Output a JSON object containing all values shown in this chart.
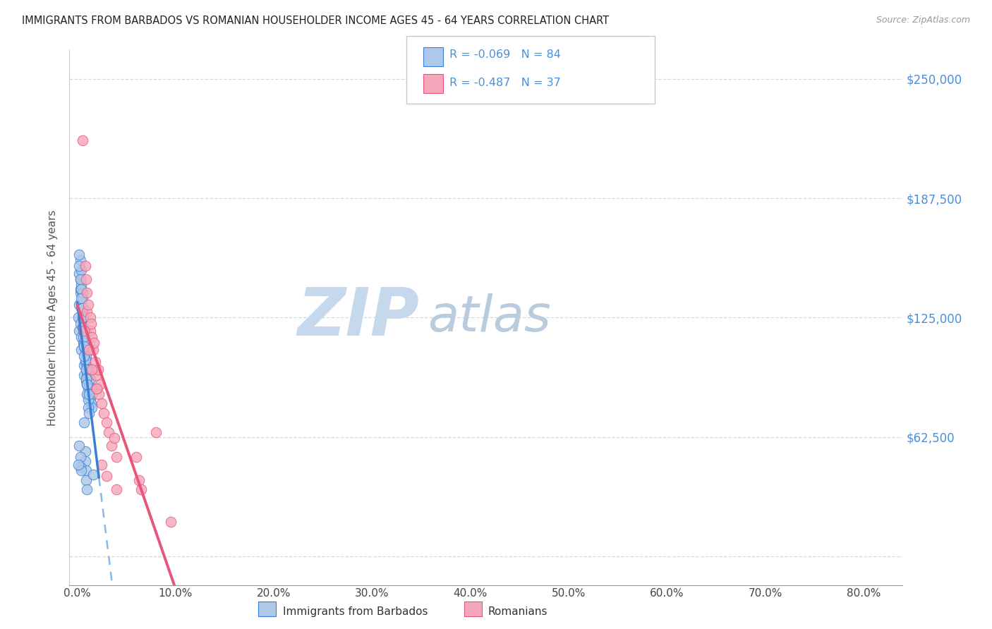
{
  "title": "IMMIGRANTS FROM BARBADOS VS ROMANIAN HOUSEHOLDER INCOME AGES 45 - 64 YEARS CORRELATION CHART",
  "source": "Source: ZipAtlas.com",
  "ylabel": "Householder Income Ages 45 - 64 years",
  "xlabel_ticks": [
    "0.0%",
    "10.0%",
    "20.0%",
    "30.0%",
    "40.0%",
    "50.0%",
    "60.0%",
    "70.0%",
    "80.0%"
  ],
  "xlabel_vals": [
    0.0,
    0.1,
    0.2,
    0.3,
    0.4,
    0.5,
    0.6,
    0.7,
    0.8
  ],
  "ytick_labels": [
    "$62,500",
    "$125,000",
    "$187,500",
    "$250,000"
  ],
  "ytick_vals": [
    62500,
    125000,
    187500,
    250000
  ],
  "grid_lines": [
    0,
    62500,
    125000,
    187500,
    250000
  ],
  "xlim": [
    -0.008,
    0.84
  ],
  "ylim": [
    -15000,
    265000
  ],
  "R_barbados": -0.069,
  "N_barbados": 84,
  "R_romanians": -0.487,
  "N_romanians": 37,
  "barbados_color": "#adc8e8",
  "romanian_color": "#f5a8bb",
  "line_barbados_solid_color": "#3a7fd5",
  "line_barbados_dash_color": "#88b8e8",
  "line_romanian_color": "#e8547a",
  "watermark_zip_color": "#c5d8ec",
  "watermark_atlas_color": "#b8ccdd",
  "title_color": "#222222",
  "right_tick_color": "#4a90d9",
  "legend_text_color": "#4a90d9",
  "barbados_x": [
    0.001,
    0.002,
    0.002,
    0.003,
    0.003,
    0.003,
    0.004,
    0.004,
    0.004,
    0.005,
    0.005,
    0.005,
    0.006,
    0.006,
    0.006,
    0.007,
    0.007,
    0.007,
    0.008,
    0.008,
    0.008,
    0.009,
    0.009,
    0.009,
    0.01,
    0.01,
    0.01,
    0.011,
    0.011,
    0.011,
    0.012,
    0.012,
    0.012,
    0.013,
    0.013,
    0.013,
    0.014,
    0.014,
    0.015,
    0.015,
    0.002,
    0.003,
    0.003,
    0.004,
    0.004,
    0.005,
    0.005,
    0.006,
    0.006,
    0.007,
    0.007,
    0.008,
    0.008,
    0.009,
    0.009,
    0.01,
    0.01,
    0.011,
    0.011,
    0.012,
    0.002,
    0.003,
    0.004,
    0.004,
    0.005,
    0.005,
    0.006,
    0.006,
    0.007,
    0.007,
    0.008,
    0.008,
    0.009,
    0.009,
    0.01,
    0.002,
    0.003,
    0.003,
    0.016,
    0.002,
    0.004,
    0.001,
    0.012,
    0.007
  ],
  "barbados_y": [
    125000,
    132000,
    118000,
    138000,
    122000,
    145000,
    130000,
    115000,
    108000,
    135000,
    120000,
    128000,
    112000,
    125000,
    118000,
    100000,
    110000,
    95000,
    102000,
    108000,
    118000,
    92000,
    98000,
    105000,
    90000,
    95000,
    100000,
    88000,
    93000,
    98000,
    85000,
    90000,
    95000,
    82000,
    88000,
    93000,
    80000,
    88000,
    78000,
    85000,
    148000,
    140000,
    155000,
    150000,
    142000,
    138000,
    130000,
    125000,
    120000,
    118000,
    112000,
    108000,
    103000,
    98000,
    93000,
    90000,
    85000,
    82000,
    78000,
    75000,
    152000,
    145000,
    140000,
    135000,
    130000,
    125000,
    120000,
    115000,
    110000,
    105000,
    55000,
    50000,
    45000,
    40000,
    35000,
    58000,
    52000,
    47000,
    43000,
    158000,
    45000,
    48000,
    85000,
    70000
  ],
  "romanian_x": [
    0.005,
    0.008,
    0.009,
    0.01,
    0.01,
    0.011,
    0.013,
    0.013,
    0.014,
    0.015,
    0.016,
    0.017,
    0.018,
    0.019,
    0.02,
    0.021,
    0.022,
    0.023,
    0.025,
    0.027,
    0.03,
    0.032,
    0.035,
    0.038,
    0.04,
    0.06,
    0.063,
    0.065,
    0.007,
    0.012,
    0.015,
    0.02,
    0.025,
    0.03,
    0.04,
    0.08,
    0.095
  ],
  "romanian_y": [
    218000,
    152000,
    145000,
    138000,
    128000,
    132000,
    125000,
    118000,
    122000,
    115000,
    108000,
    112000,
    102000,
    95000,
    88000,
    98000,
    85000,
    90000,
    80000,
    75000,
    70000,
    65000,
    58000,
    62000,
    52000,
    52000,
    40000,
    35000,
    118000,
    108000,
    98000,
    88000,
    48000,
    42000,
    35000,
    65000,
    18000
  ]
}
